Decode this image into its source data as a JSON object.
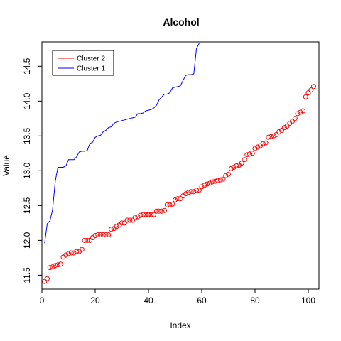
{
  "chart_data": {
    "type": "line",
    "title": "Alcohol",
    "xlabel": "Index",
    "ylabel": "Value",
    "xlim": [
      0,
      104
    ],
    "ylim": [
      11.3,
      14.85
    ],
    "xticks": [
      0,
      20,
      40,
      60,
      80,
      100
    ],
    "yticks": [
      11.5,
      12.0,
      12.5,
      13.0,
      13.5,
      14.0,
      14.5
    ],
    "legend_position": "top-left",
    "series": [
      {
        "name": "Cluster 2",
        "style": "points",
        "color": "#ff0000",
        "x": [
          1,
          2,
          3,
          4,
          5,
          6,
          7,
          8,
          9,
          10,
          11,
          12,
          13,
          14,
          15,
          16,
          17,
          18,
          19,
          20,
          21,
          22,
          23,
          24,
          25,
          26,
          27,
          28,
          29,
          30,
          31,
          32,
          33,
          34,
          35,
          36,
          37,
          38,
          39,
          40,
          41,
          42,
          43,
          44,
          45,
          46,
          47,
          48,
          49,
          50,
          51,
          52,
          53,
          54,
          55,
          56,
          57,
          58,
          59,
          60,
          61,
          62,
          63,
          64,
          65,
          66,
          67,
          68,
          69,
          70,
          71,
          72,
          73,
          74,
          75,
          76,
          77,
          78,
          79,
          80,
          81,
          82,
          83,
          84,
          85,
          86,
          87,
          88,
          89,
          90,
          91,
          92,
          93,
          94,
          95,
          96,
          97,
          98,
          99,
          100,
          101,
          102
        ],
        "y": [
          11.41,
          11.45,
          11.61,
          11.62,
          11.64,
          11.65,
          11.66,
          11.76,
          11.79,
          11.81,
          11.82,
          11.82,
          11.84,
          11.84,
          11.87,
          12.0,
          12.0,
          12.0,
          12.04,
          12.07,
          12.08,
          12.08,
          12.08,
          12.08,
          12.08,
          12.16,
          12.17,
          12.2,
          12.22,
          12.25,
          12.25,
          12.29,
          12.29,
          12.29,
          12.33,
          12.34,
          12.36,
          12.37,
          12.37,
          12.37,
          12.37,
          12.37,
          12.42,
          12.42,
          12.42,
          12.43,
          12.51,
          12.51,
          12.52,
          12.58,
          12.6,
          12.6,
          12.64,
          12.67,
          12.69,
          12.7,
          12.7,
          12.72,
          12.72,
          12.77,
          12.79,
          12.81,
          12.82,
          12.84,
          12.85,
          12.86,
          12.87,
          12.88,
          12.93,
          12.95,
          13.03,
          13.05,
          13.07,
          13.08,
          13.11,
          13.16,
          13.23,
          13.24,
          13.25,
          13.32,
          13.34,
          13.36,
          13.39,
          13.4,
          13.48,
          13.49,
          13.5,
          13.52,
          13.56,
          13.58,
          13.62,
          13.64,
          13.68,
          13.71,
          13.75,
          13.82,
          13.84,
          13.86,
          14.06,
          14.12,
          14.16,
          14.21
        ]
      },
      {
        "name": "Cluster 1",
        "style": "line",
        "color": "#0000ff",
        "x": [
          1,
          2,
          3,
          4,
          5,
          6,
          7,
          8,
          9,
          10,
          11,
          12,
          13,
          14,
          15,
          16,
          17,
          18,
          19,
          20,
          21,
          22,
          23,
          24,
          25,
          26,
          27,
          28,
          29,
          30,
          31,
          32,
          33,
          34,
          35,
          36,
          37,
          38,
          39,
          40,
          41,
          42,
          43,
          44,
          45,
          46,
          47,
          48,
          49,
          50,
          51,
          52,
          53,
          54,
          55,
          56,
          57,
          58,
          59
        ],
        "y": [
          11.96,
          12.24,
          12.28,
          12.44,
          12.85,
          13.05,
          13.05,
          13.05,
          13.07,
          13.16,
          13.16,
          13.16,
          13.2,
          13.27,
          13.28,
          13.28,
          13.29,
          13.39,
          13.41,
          13.48,
          13.5,
          13.51,
          13.56,
          13.58,
          13.62,
          13.63,
          13.68,
          13.7,
          13.71,
          13.72,
          13.73,
          13.74,
          13.75,
          13.76,
          13.77,
          13.82,
          13.82,
          13.83,
          13.86,
          13.87,
          13.88,
          13.9,
          13.94,
          14.02,
          14.06,
          14.1,
          14.1,
          14.12,
          14.19,
          14.2,
          14.21,
          14.22,
          14.3,
          14.37,
          14.38,
          14.38,
          14.39,
          14.75,
          14.83
        ]
      }
    ]
  }
}
